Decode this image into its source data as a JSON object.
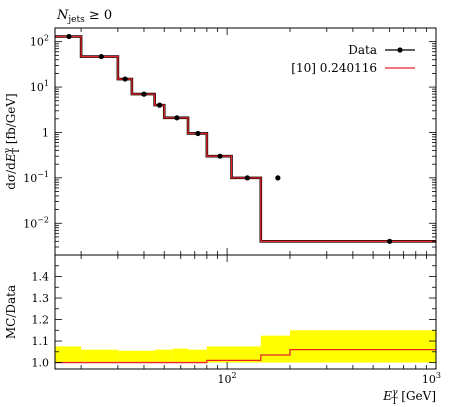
{
  "chart_data": {
    "type": "line",
    "title": "N_jets ≥ 0",
    "xlabel": "E_T^γ [GeV]",
    "xscale": "log",
    "xlim": [
      15,
      1000
    ],
    "x_ticks": [
      {
        "value": 100,
        "label": "10^2"
      },
      {
        "value": 1000,
        "label": "10^3"
      }
    ],
    "main": {
      "ylabel": "dσ/dE_T^γ [fb/GeV]",
      "yscale": "log",
      "ylim": [
        0.002,
        200
      ],
      "y_ticks": [
        {
          "value": 0.01,
          "label": "10^-2"
        },
        {
          "value": 0.1,
          "label": "10^-1"
        },
        {
          "value": 1,
          "label": "1"
        },
        {
          "value": 10,
          "label": "10^1"
        },
        {
          "value": 100,
          "label": "10^2"
        }
      ],
      "data": {
        "name": "Data",
        "x": [
          17.5,
          25,
          32.5,
          40,
          47.5,
          57.5,
          72.5,
          92.5,
          125,
          175,
          600
        ],
        "y": [
          130,
          47,
          15,
          7,
          4,
          2.1,
          0.95,
          0.3,
          0.1,
          0.1,
          0.004
        ]
      },
      "mc": {
        "name": "[10] 0.240116",
        "edges": [
          15,
          20,
          30,
          35,
          45,
          50,
          65,
          80,
          105,
          145,
          200,
          1000
        ],
        "values": [
          130,
          47,
          15,
          7,
          4,
          2.1,
          0.95,
          0.3,
          0.1,
          0.004,
          0.004
        ]
      }
    },
    "ratio": {
      "ylabel": "MC/Data",
      "ylim": [
        0.97,
        1.5
      ],
      "y_ticks": [
        1.0,
        1.1,
        1.2,
        1.3,
        1.4
      ],
      "band_edges": [
        15,
        20,
        30,
        45,
        55,
        65,
        80,
        145,
        200,
        1000
      ],
      "band_upper": [
        1.075,
        1.06,
        1.055,
        1.06,
        1.065,
        1.06,
        1.075,
        1.125,
        1.15
      ],
      "band_lower": [
        1.0,
        1.0,
        1.0,
        1.0,
        1.0,
        1.0,
        1.0,
        1.0,
        1.0
      ],
      "line_edges": [
        15,
        80,
        145,
        200,
        1000
      ],
      "line_values": [
        1.0,
        1.01,
        1.035,
        1.06
      ]
    },
    "legend": "top-right",
    "colors": {
      "data": "#000000",
      "mc": "#e8252a",
      "band": "#ffff00"
    }
  }
}
